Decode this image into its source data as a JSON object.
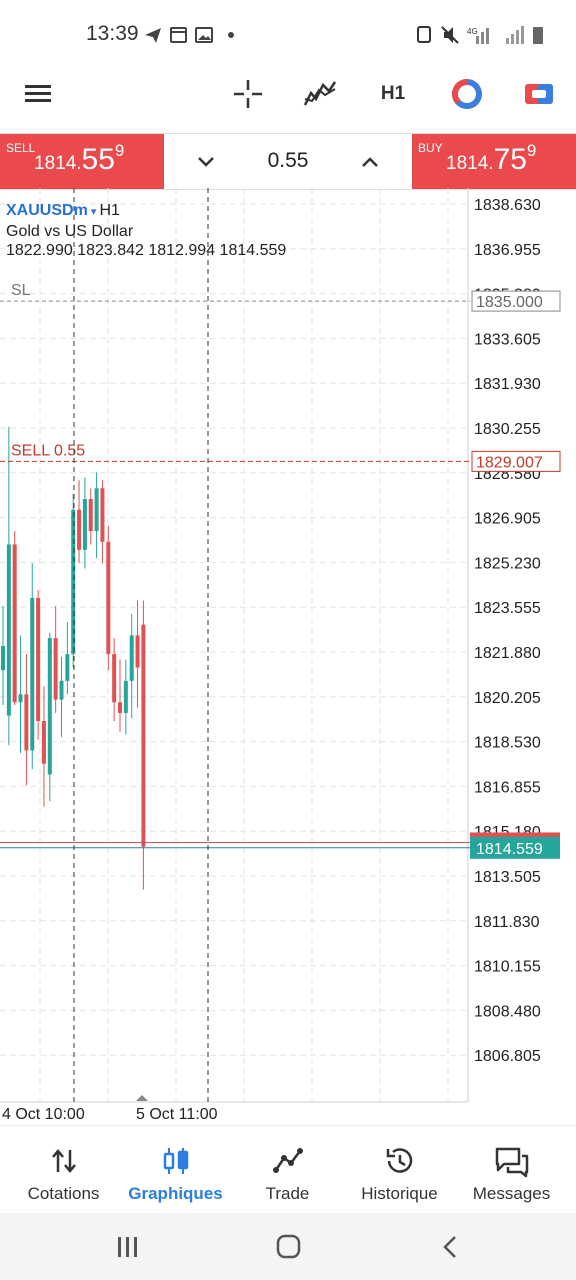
{
  "status_bar": {
    "time": "13:39"
  },
  "toolbar": {
    "menu_icon": "hamburger-icon",
    "crosshair_icon": "crosshair-icon",
    "indicators_icon": "indicators-icon",
    "timeframe": "H1",
    "color_scheme_icon": "color-scheme-icon",
    "one_click_icon": "one-click-trading-icon"
  },
  "trade_panel": {
    "sell": {
      "label": "SELL",
      "price_small": "1814.",
      "price_big": "55",
      "price_sup": "9"
    },
    "buy": {
      "label": "BUY",
      "price_small": "1814.",
      "price_big": "75",
      "price_sup": "9"
    },
    "lot": "0.55"
  },
  "chart": {
    "symbol": "XAUUSDm",
    "timeframe": "H1",
    "description": "Gold vs US Dollar",
    "ohlc": "1822.990 1823.842 1812.994 1814.559",
    "sl_label": "SL",
    "sl_price": "1835.000",
    "order_label": "SELL 0.55",
    "order_price": "1829.007",
    "current_price": "1814.559",
    "y_ticks": [
      "1838.630",
      "1836.955",
      "1835.280",
      "1833.605",
      "1831.930",
      "1830.255",
      "1828.580",
      "1826.905",
      "1825.230",
      "1823.555",
      "1821.880",
      "1820.205",
      "1818.530",
      "1816.855",
      "1815.180",
      "1813.505",
      "1811.830",
      "1810.155",
      "1808.480",
      "1806.805"
    ],
    "x_ticks": [
      "4 Oct 10:00",
      "5 Oct 11:00"
    ],
    "colors": {
      "bull": "#26a69a",
      "bear": "#e05252",
      "sl_line": "#888888",
      "order_line": "#c0392b",
      "price_bg": "#26a69a"
    },
    "candles": [
      {
        "o": 1821.2,
        "h": 1823.6,
        "l": 1819.9,
        "c": 1822.1
      },
      {
        "o": 1819.5,
        "h": 1830.3,
        "l": 1818.4,
        "c": 1825.9
      },
      {
        "o": 1825.9,
        "h": 1826.4,
        "l": 1819.9,
        "c": 1820.0
      },
      {
        "o": 1820.0,
        "h": 1822.5,
        "l": 1818.1,
        "c": 1820.3
      },
      {
        "o": 1820.3,
        "h": 1821.8,
        "l": 1816.9,
        "c": 1818.2
      },
      {
        "o": 1818.2,
        "h": 1825.2,
        "l": 1817.5,
        "c": 1823.9
      },
      {
        "o": 1823.9,
        "h": 1824.2,
        "l": 1818.6,
        "c": 1819.3
      },
      {
        "o": 1819.3,
        "h": 1820.6,
        "l": 1816.1,
        "c": 1817.7
      },
      {
        "o": 1817.3,
        "h": 1822.6,
        "l": 1816.3,
        "c": 1822.4
      },
      {
        "o": 1822.4,
        "h": 1823.6,
        "l": 1819.6,
        "c": 1820.1
      },
      {
        "o": 1820.1,
        "h": 1821.7,
        "l": 1818.7,
        "c": 1820.8
      },
      {
        "o": 1820.8,
        "h": 1823.0,
        "l": 1820.3,
        "c": 1821.8
      },
      {
        "o": 1821.8,
        "h": 1827.8,
        "l": 1821.3,
        "c": 1827.2
      },
      {
        "o": 1827.2,
        "h": 1828.3,
        "l": 1825.2,
        "c": 1825.7
      },
      {
        "o": 1825.7,
        "h": 1828.4,
        "l": 1825.0,
        "c": 1827.6
      },
      {
        "o": 1827.6,
        "h": 1828.0,
        "l": 1825.9,
        "c": 1826.4
      },
      {
        "o": 1826.4,
        "h": 1828.6,
        "l": 1825.4,
        "c": 1828.0
      },
      {
        "o": 1828.0,
        "h": 1828.3,
        "l": 1825.2,
        "c": 1826.0
      },
      {
        "o": 1826.0,
        "h": 1826.6,
        "l": 1821.2,
        "c": 1821.8
      },
      {
        "o": 1821.8,
        "h": 1822.4,
        "l": 1819.3,
        "c": 1820.0
      },
      {
        "o": 1820.0,
        "h": 1821.6,
        "l": 1818.9,
        "c": 1819.6
      },
      {
        "o": 1819.6,
        "h": 1821.6,
        "l": 1818.8,
        "c": 1820.8
      },
      {
        "o": 1820.8,
        "h": 1823.3,
        "l": 1819.4,
        "c": 1822.5
      },
      {
        "o": 1822.5,
        "h": 1823.8,
        "l": 1819.8,
        "c": 1821.3
      },
      {
        "o": 1822.9,
        "h": 1823.8,
        "l": 1813.0,
        "c": 1814.6
      }
    ]
  },
  "bottom_nav": [
    {
      "label": "Cotations",
      "icon": "quotes-icon",
      "active": false
    },
    {
      "label": "Graphiques",
      "icon": "charts-icon",
      "active": true
    },
    {
      "label": "Trade",
      "icon": "trade-icon",
      "active": false
    },
    {
      "label": "Historique",
      "icon": "history-icon",
      "active": false
    },
    {
      "label": "Messages",
      "icon": "messages-icon",
      "active": false
    }
  ],
  "system_nav": {
    "recents_icon": "recents-icon",
    "home_icon": "home-icon",
    "back_icon": "back-icon"
  }
}
